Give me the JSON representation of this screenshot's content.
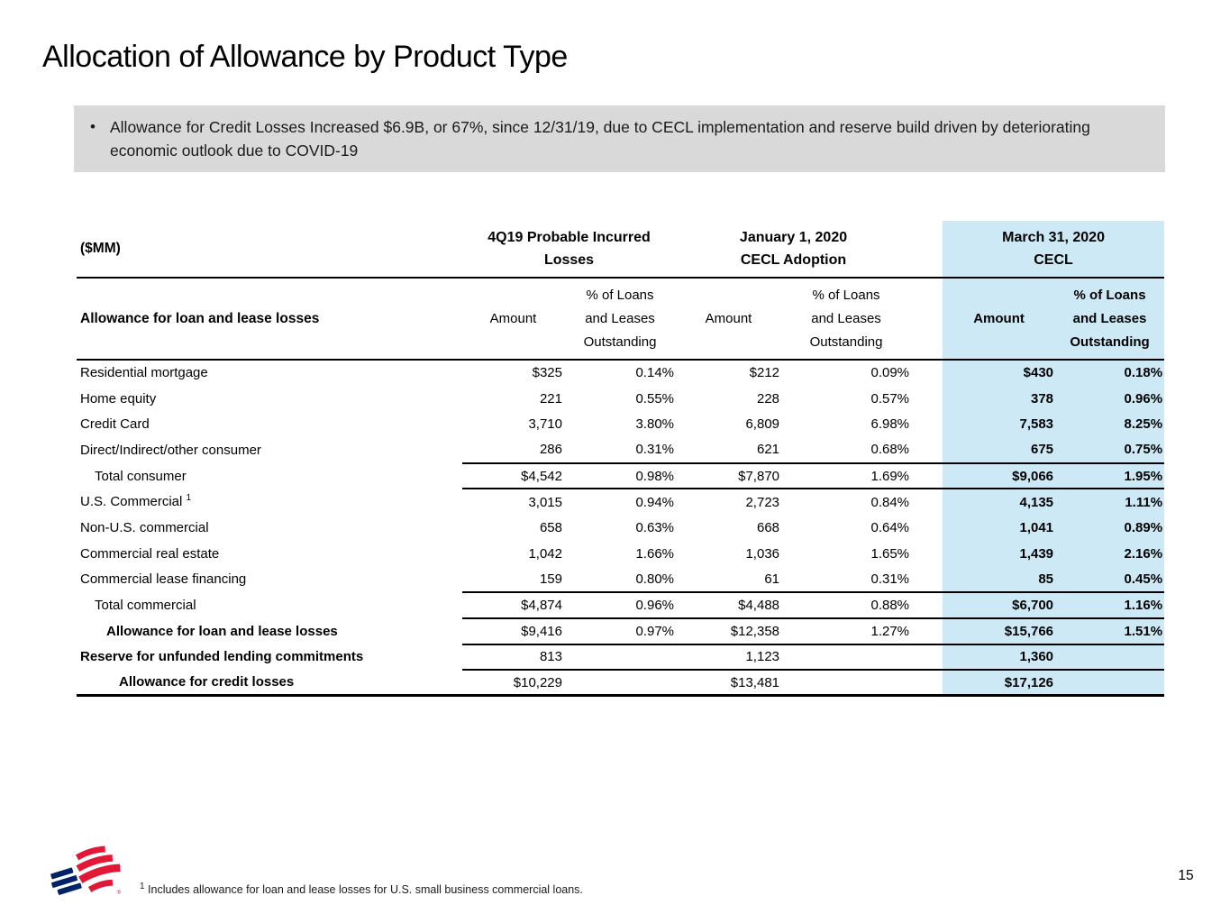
{
  "slide": {
    "title": "Allocation of Allowance by Product Type",
    "bullet_glyph": "•",
    "bullet_text": "Allowance for Credit Losses Increased $6.9B, or 67%, since 12/31/19, due to CECL implementation and reserve build driven by deteriorating economic outlook due to COVID-19",
    "footnote_sup": "1",
    "footnote_text": " Includes allowance for loan and lease losses for U.S. small business commercial loans.",
    "page_number": "15",
    "logo_registered_mark": "®"
  },
  "colors": {
    "highlight": "#cde9f5",
    "callout_bg": "#d9d9d9",
    "logo_red": "#e31837",
    "logo_blue": "#012169"
  },
  "table": {
    "unit_label": "($MM)",
    "row_header": "Allowance for loan and lease losses",
    "groups": [
      {
        "title": "4Q19 Probable Incurred\nLosses"
      },
      {
        "title": "January 1, 2020\nCECL Adoption"
      },
      {
        "title": "March 31, 2020\nCECL"
      }
    ],
    "sub_amount": "Amount",
    "sub_pct": "% of Loans\nand Leases\nOutstanding",
    "rows": [
      {
        "label": "Residential mortgage",
        "indent": 0,
        "bold": false,
        "rule": "none",
        "values": [
          "$325",
          "0.14%",
          "$212",
          "0.09%",
          "$430",
          "0.18%"
        ]
      },
      {
        "label": "Home equity",
        "indent": 0,
        "bold": false,
        "rule": "none",
        "values": [
          "221",
          "0.55%",
          "228",
          "0.57%",
          "378",
          "0.96%"
        ]
      },
      {
        "label": "Credit Card",
        "indent": 0,
        "bold": false,
        "rule": "none",
        "values": [
          "3,710",
          "3.80%",
          "6,809",
          "6.98%",
          "7,583",
          "8.25%"
        ]
      },
      {
        "label": "Direct/Indirect/other consumer",
        "indent": 0,
        "bold": false,
        "rule": "partial",
        "values": [
          "286",
          "0.31%",
          "621",
          "0.68%",
          "675",
          "0.75%"
        ]
      },
      {
        "label": "Total consumer",
        "indent": 1,
        "bold": false,
        "rule": "partial",
        "values": [
          "$4,542",
          "0.98%",
          "$7,870",
          "1.69%",
          "$9,066",
          "1.95%"
        ]
      },
      {
        "label": "U.S. Commercial",
        "sup": "1",
        "indent": 0,
        "bold": false,
        "rule": "none",
        "values": [
          "3,015",
          "0.94%",
          "2,723",
          "0.84%",
          "4,135",
          "1.11%"
        ]
      },
      {
        "label": "Non-U.S. commercial",
        "indent": 0,
        "bold": false,
        "rule": "none",
        "values": [
          "658",
          "0.63%",
          "668",
          "0.64%",
          "1,041",
          "0.89%"
        ]
      },
      {
        "label": "Commercial real estate",
        "indent": 0,
        "bold": false,
        "rule": "none",
        "values": [
          "1,042",
          "1.66%",
          "1,036",
          "1.65%",
          "1,439",
          "2.16%"
        ]
      },
      {
        "label": "Commercial lease financing",
        "indent": 0,
        "bold": false,
        "rule": "partial",
        "values": [
          "159",
          "0.80%",
          "61",
          "0.31%",
          "85",
          "0.45%"
        ]
      },
      {
        "label": "Total commercial",
        "indent": 1,
        "bold": false,
        "rule": "partial",
        "values": [
          "$4,874",
          "0.96%",
          "$4,488",
          "0.88%",
          "$6,700",
          "1.16%"
        ]
      },
      {
        "label": "Allowance for loan and lease losses",
        "indent": 2,
        "bold": true,
        "rule": "partial",
        "values": [
          "$9,416",
          "0.97%",
          "$12,358",
          "1.27%",
          "$15,766",
          "1.51%"
        ]
      },
      {
        "label": "Reserve for unfunded lending commitments",
        "indent": 0,
        "bold": true,
        "rule": "partial",
        "values": [
          "813",
          "",
          "1,123",
          "",
          "1,360",
          ""
        ]
      },
      {
        "label": "Allowance for credit losses",
        "indent": 3,
        "bold": true,
        "rule": "full",
        "values": [
          "$10,229",
          "",
          "$13,481",
          "",
          "$17,126",
          ""
        ]
      }
    ]
  }
}
